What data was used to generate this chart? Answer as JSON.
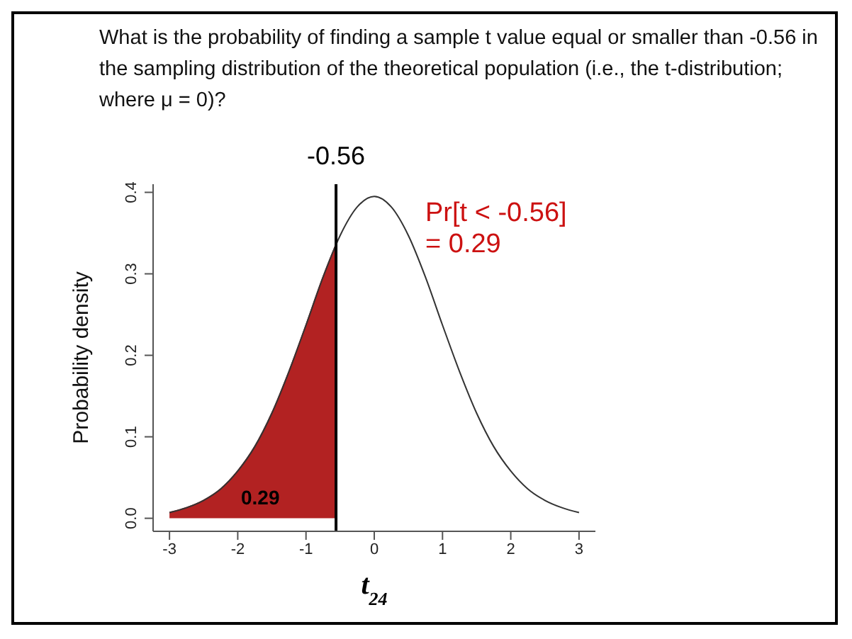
{
  "chart_data": {
    "type": "line",
    "title": "What is the probability of finding a sample t value equal or smaller than -0.56 in the sampling distribution of the theoretical population (i.e., the t-distribution; where μ = 0)?",
    "xlabel": "t$_{24}$",
    "ylabel": "Probability density",
    "xlim": [
      -3.24,
      3.24
    ],
    "ylim": [
      -0.016,
      0.41
    ],
    "xticks": [
      -3,
      -2,
      -1,
      0,
      1,
      2,
      3
    ],
    "yticks": [
      {
        "value": 0,
        "label": "0.0"
      },
      0.1,
      0.2,
      0.3,
      0.4
    ],
    "marker": "none",
    "line_style": "solid",
    "series": [
      {
        "type": "area",
        "color": "#b22222",
        "x": [
          -3,
          -2.75,
          -2.5,
          -2.25,
          -2,
          -1.75,
          -1.5,
          -1.25,
          -1,
          -0.75,
          -0.56
        ],
        "values": [
          0.007,
          0.013,
          0.022,
          0.036,
          0.058,
          0.088,
          0.129,
          0.18,
          0.237,
          0.296,
          0.336
        ]
      },
      {
        "color": "#333333",
        "x": [
          -3,
          -2.75,
          -2.5,
          -2.25,
          -2,
          -1.75,
          -1.5,
          -1.25,
          -1,
          -0.75,
          -0.5,
          -0.25,
          0,
          0.25,
          0.5,
          0.75,
          1,
          1.25,
          1.5,
          1.75,
          2,
          2.25,
          2.5,
          2.75,
          3
        ],
        "values": [
          0.007,
          0.013,
          0.022,
          0.036,
          0.058,
          0.088,
          0.129,
          0.18,
          0.237,
          0.296,
          0.347,
          0.382,
          0.395,
          0.382,
          0.347,
          0.296,
          0.237,
          0.18,
          0.129,
          0.088,
          0.058,
          0.036,
          0.022,
          0.013,
          0.007
        ]
      }
    ],
    "ref_lines": [
      {
        "axis": "x",
        "value": -0.56,
        "label": "-0.56",
        "color": "#000000"
      }
    ],
    "annotations": [
      "Pr[t < -0.56]\n= 0.29",
      "0.29"
    ]
  }
}
